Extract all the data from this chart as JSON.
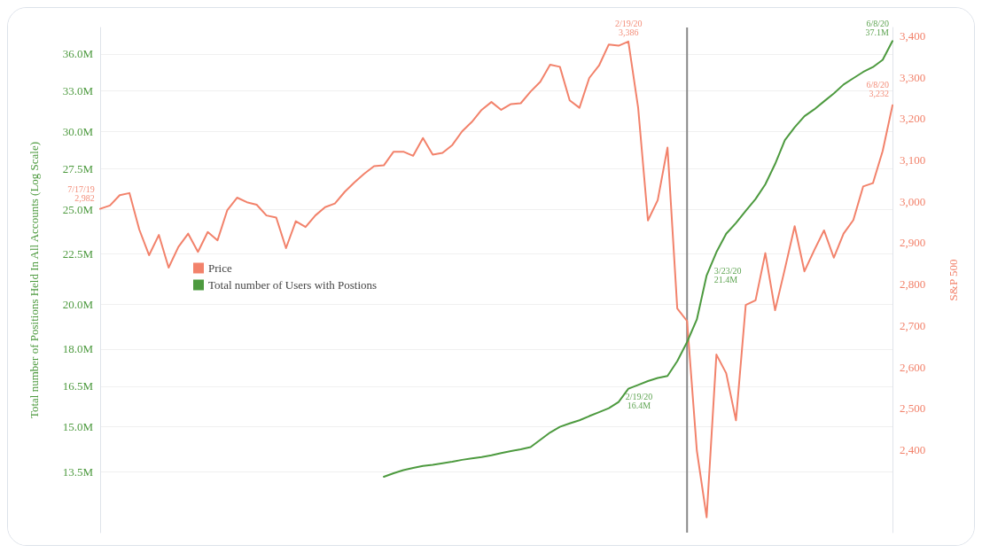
{
  "chart_data": {
    "type": "line",
    "ylabel": "Total number of Positions Held In All Accounts (Log Scale)",
    "y2label": "S&P 500",
    "log": "y",
    "grid": "y",
    "legend": "left",
    "marker": "none",
    "line_style": "solid",
    "tick_labels": "y",
    "categories": [
      null,
      null,
      null,
      null,
      null,
      null,
      null,
      null,
      null,
      null,
      null,
      null,
      null,
      null,
      null,
      null,
      null,
      null,
      null,
      null,
      null,
      null,
      null,
      null,
      null,
      null,
      null,
      null,
      null,
      null,
      null,
      null,
      null,
      null,
      null,
      null,
      null,
      null,
      null,
      null,
      null,
      null,
      null,
      null,
      null,
      null,
      null,
      null,
      null,
      null,
      null,
      null,
      null,
      null,
      null,
      null,
      null,
      null,
      null,
      null,
      null,
      null,
      null,
      null,
      null,
      null,
      null,
      null,
      null,
      null,
      null,
      null,
      null,
      null,
      null,
      null,
      null,
      null,
      null,
      null,
      null,
      null
    ],
    "ylim": [
      11.7,
      38.3
    ],
    "yticks": [
      {
        "value": 13.5,
        "label": "13.5M"
      },
      {
        "value": 15,
        "label": "15.0M"
      },
      {
        "value": 16.5,
        "label": "16.5M"
      },
      {
        "value": 18,
        "label": "18.0M"
      },
      {
        "value": 20,
        "label": "20.0M"
      },
      {
        "value": 22.5,
        "label": "22.5M"
      },
      {
        "value": 25,
        "label": "25.0M"
      },
      {
        "value": 27.5,
        "label": "27.5M"
      },
      {
        "value": 30,
        "label": "30.0M"
      },
      {
        "value": 33,
        "label": "33.0M"
      },
      {
        "value": 36,
        "label": "36.0M"
      }
    ],
    "y2lim": [
      2200,
      3420
    ],
    "y2ticks": [
      {
        "value": 2400,
        "label": "2,400"
      },
      {
        "value": 2500,
        "label": "2,500"
      },
      {
        "value": 2600,
        "label": "2,600"
      },
      {
        "value": 2700,
        "label": "2,700"
      },
      {
        "value": 2800,
        "label": "2,800"
      },
      {
        "value": 2900,
        "label": "2,900"
      },
      {
        "value": 3000,
        "label": "3,000"
      },
      {
        "value": 3100,
        "label": "3,100"
      },
      {
        "value": 3200,
        "label": "3,200"
      },
      {
        "value": 3300,
        "label": "3,300"
      },
      {
        "value": 3400,
        "label": "3,400"
      }
    ],
    "series": [
      {
        "name": "Price",
        "color": "#f2826b",
        "axis": "y2",
        "values": [
          2982,
          2990,
          3015,
          3020,
          2932,
          2870,
          2919,
          2840,
          2890,
          2922,
          2878,
          2926,
          2906,
          2979,
          3009,
          2998,
          2992,
          2966,
          2961,
          2887,
          2952,
          2938,
          2966,
          2986,
          2995,
          3023,
          3046,
          3067,
          3085,
          3087,
          3120,
          3120,
          3110,
          3153,
          3113,
          3117,
          3136,
          3169,
          3192,
          3221,
          3240,
          3221,
          3235,
          3237,
          3265,
          3289,
          3330,
          3325,
          3244,
          3226,
          3298,
          3328,
          3379,
          3376,
          3386,
          3226,
          2954,
          3003,
          3130,
          2741,
          2711,
          2398,
          2237,
          2630,
          2585,
          2471,
          2750,
          2761,
          2875,
          2737,
          2837,
          2940,
          2831,
          2882,
          2930,
          2864,
          2922,
          2955,
          3036,
          3044,
          3122,
          3232
        ]
      },
      {
        "name": "Total number of Users with Postions",
        "color": "#4d9a3f",
        "values": [
          null,
          null,
          null,
          null,
          null,
          null,
          null,
          null,
          null,
          null,
          null,
          null,
          null,
          null,
          null,
          null,
          null,
          null,
          null,
          null,
          null,
          null,
          null,
          null,
          null,
          null,
          null,
          null,
          null,
          13.34,
          13.45,
          13.55,
          13.62,
          13.68,
          13.72,
          13.77,
          13.82,
          13.88,
          13.93,
          13.97,
          14.03,
          14.1,
          14.17,
          14.23,
          14.3,
          14.55,
          14.8,
          15.0,
          15.12,
          15.23,
          15.38,
          15.52,
          15.67,
          15.9,
          16.4,
          16.55,
          16.7,
          16.82,
          16.9,
          17.5,
          18.3,
          19.3,
          21.4,
          22.6,
          23.6,
          24.2,
          24.9,
          25.6,
          26.5,
          27.8,
          29.4,
          30.3,
          31.1,
          31.6,
          32.2,
          32.8,
          33.5,
          34.0,
          34.5,
          34.9,
          35.5,
          37.1
        ]
      }
    ],
    "annotations": [
      "7/17/19\n2,982",
      "2/19/20\n3,386",
      "6/8/20\n3,232",
      "2/19/20\n16.4M",
      "3/23/20\n21.4M",
      "6/8/20\n37.1M"
    ]
  }
}
